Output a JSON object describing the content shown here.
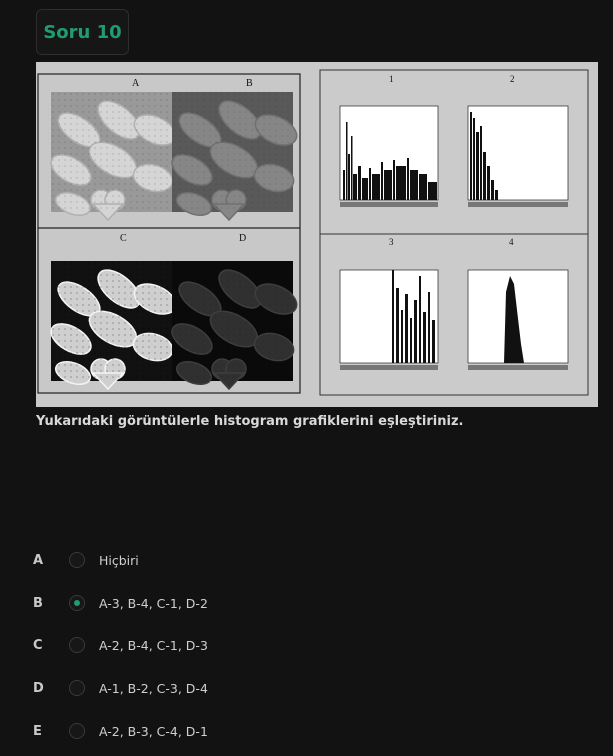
{
  "question": {
    "badge": "Soru 10",
    "text": "Yukarıdaki görüntülerle histogram grafiklerini eşleştiriniz."
  },
  "figure": {
    "image_labels": [
      "A",
      "B",
      "C",
      "D"
    ],
    "histogram_labels": [
      "1",
      "2",
      "3",
      "4"
    ]
  },
  "options": [
    {
      "letter": "A",
      "text": "Hiçbiri",
      "selected": false
    },
    {
      "letter": "B",
      "text": "A-3, B-4, C-1, D-2",
      "selected": true
    },
    {
      "letter": "C",
      "text": "A-2, B-4, C-1, D-3",
      "selected": false
    },
    {
      "letter": "D",
      "text": "A-1, B-2, C-3, D-4",
      "selected": false
    },
    {
      "letter": "E",
      "text": "A-2, B-3, C-4, D-1",
      "selected": false
    }
  ],
  "colors": {
    "accent": "#1f9d6f",
    "background": "#121212"
  }
}
